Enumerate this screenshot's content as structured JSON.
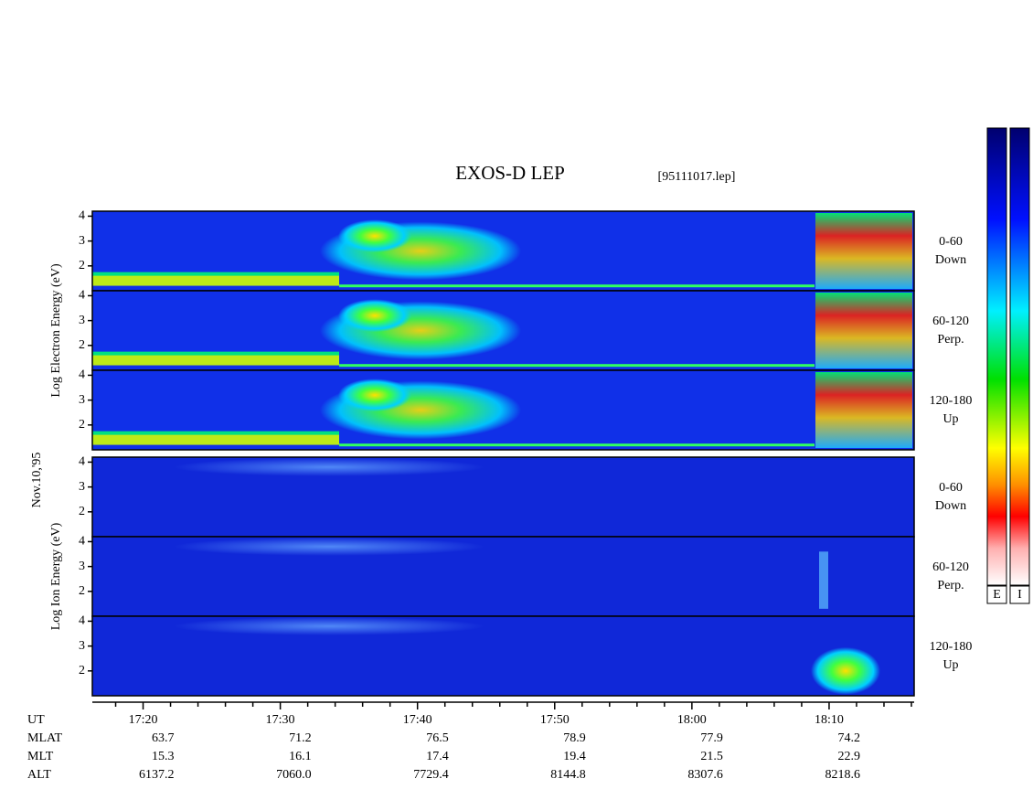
{
  "chart_data": {
    "type": "spectrogram",
    "title": "EXOS-D LEP",
    "subtitle": "[95111017.lep]",
    "date_label": "Nov.10,'95",
    "xlabel": "UT",
    "xlim": [
      1036.3,
      1096.2
    ],
    "xticks": [
      {
        "value": 1040,
        "label": "17:20"
      },
      {
        "value": 1050,
        "label": "17:30"
      },
      {
        "value": 1060,
        "label": "17:40"
      },
      {
        "value": 1070,
        "label": "17:50"
      },
      {
        "value": 1080,
        "label": "18:00"
      },
      {
        "value": 1090,
        "label": "18:10"
      }
    ],
    "xminorticks": [
      1038,
      1042,
      1044,
      1046,
      1048,
      1052,
      1054,
      1056,
      1058,
      1062,
      1064,
      1066,
      1068,
      1072,
      1074,
      1076,
      1078,
      1082,
      1084,
      1086,
      1088,
      1092,
      1094,
      1096
    ],
    "ylim": [
      1,
      4.2
    ],
    "yticks": [
      2,
      3,
      4
    ],
    "groups": [
      {
        "ylabel": "Log Electron Energy (eV)",
        "panels": [
          {
            "label_lines": [
              "0-60",
              "Down"
            ]
          },
          {
            "label_lines": [
              "60-120",
              "Perp."
            ]
          },
          {
            "label_lines": [
              "120-180",
              "Up"
            ]
          }
        ]
      },
      {
        "ylabel": "Log Ion Energy (eV)",
        "panels": [
          {
            "label_lines": [
              "0-60",
              "Down"
            ]
          },
          {
            "label_lines": [
              "60-120",
              "Perp."
            ]
          },
          {
            "label_lines": [
              "120-180",
              "Up"
            ]
          }
        ]
      }
    ],
    "ephemeris": [
      {
        "name": "MLAT",
        "values": [
          "63.7",
          "71.2",
          "76.5",
          "78.9",
          "77.9",
          "74.2"
        ]
      },
      {
        "name": "MLT",
        "values": [
          "15.3",
          "16.1",
          "17.4",
          "19.4",
          "21.5",
          "22.9"
        ]
      },
      {
        "name": "ALT",
        "values": [
          "6137.2",
          "7060.0",
          "7729.4",
          "8144.8",
          "8307.6",
          "8218.6"
        ]
      }
    ],
    "colorbars": [
      "E",
      "I"
    ]
  }
}
